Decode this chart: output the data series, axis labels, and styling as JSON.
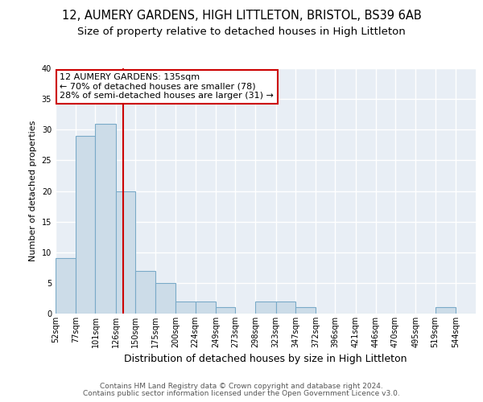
{
  "title1": "12, AUMERY GARDENS, HIGH LITTLETON, BRISTOL, BS39 6AB",
  "title2": "Size of property relative to detached houses in High Littleton",
  "xlabel": "Distribution of detached houses by size in High Littleton",
  "ylabel": "Number of detached properties",
  "bin_labels": [
    "52sqm",
    "77sqm",
    "101sqm",
    "126sqm",
    "150sqm",
    "175sqm",
    "200sqm",
    "224sqm",
    "249sqm",
    "273sqm",
    "298sqm",
    "323sqm",
    "347sqm",
    "372sqm",
    "396sqm",
    "421sqm",
    "446sqm",
    "470sqm",
    "495sqm",
    "519sqm",
    "544sqm"
  ],
  "bin_edges": [
    52,
    77,
    101,
    126,
    150,
    175,
    200,
    224,
    249,
    273,
    298,
    323,
    347,
    372,
    396,
    421,
    446,
    470,
    495,
    519,
    544
  ],
  "bin_width": 25,
  "values": [
    9,
    29,
    31,
    20,
    7,
    5,
    2,
    2,
    1,
    0,
    2,
    2,
    1,
    0,
    0,
    0,
    0,
    0,
    0,
    1,
    0
  ],
  "bar_color": "#ccdce8",
  "bar_edge_color": "#7aaac8",
  "red_line_x": 135,
  "annotation_title": "12 AUMERY GARDENS: 135sqm",
  "annotation_line1": "← 70% of detached houses are smaller (78)",
  "annotation_line2": "28% of semi-detached houses are larger (31) →",
  "annotation_box_color": "#ffffff",
  "annotation_box_edge": "#cc0000",
  "red_line_color": "#cc0000",
  "ylim": [
    0,
    40
  ],
  "yticks": [
    0,
    5,
    10,
    15,
    20,
    25,
    30,
    35,
    40
  ],
  "footer1": "Contains HM Land Registry data © Crown copyright and database right 2024.",
  "footer2": "Contains public sector information licensed under the Open Government Licence v3.0.",
  "plot_bg_color": "#e8eef5",
  "fig_bg_color": "#ffffff",
  "title1_fontsize": 10.5,
  "title2_fontsize": 9.5,
  "xlabel_fontsize": 9,
  "ylabel_fontsize": 8,
  "tick_fontsize": 7,
  "footer_fontsize": 6.5,
  "annot_fontsize": 8
}
